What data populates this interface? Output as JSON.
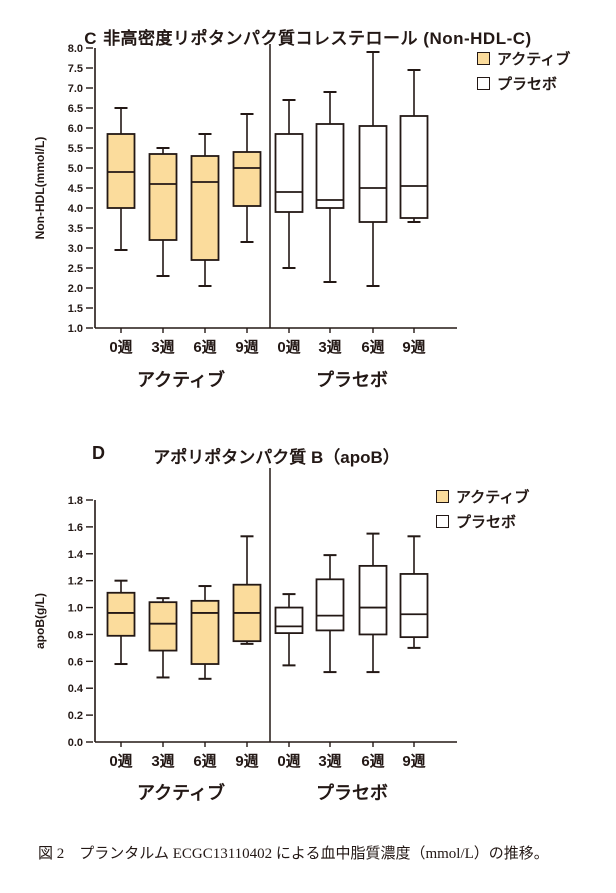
{
  "colors": {
    "active_fill": "#FBDC9C",
    "placebo_fill": "#FFFFFF",
    "stroke": "#231815",
    "text": "#231815"
  },
  "legend": {
    "active_label": "アクティブ",
    "placebo_label": "プラセボ"
  },
  "caption": "図 2　プランタルム ECGC13110402 による血中脂質濃度（mmol/L）の推移。",
  "chart_data": [
    {
      "type": "boxplot",
      "panel_letter": "C",
      "title": "非高密度リポタンパク質コレステロール (Non-HDL-C)",
      "ylabel": "Non-HDL(mmol/L)",
      "ylim": [
        1.0,
        8.0
      ],
      "ytick_step": 0.5,
      "categories": [
        "0週",
        "3週",
        "6週",
        "9週"
      ],
      "legend_position": "top-right",
      "grid": false,
      "groups": [
        {
          "name": "アクティブ",
          "fill": "#FBDC9C",
          "boxes": [
            {
              "min": 2.95,
              "q1": 4.0,
              "median": 4.9,
              "q3": 5.85,
              "max": 6.5
            },
            {
              "min": 2.3,
              "q1": 3.2,
              "median": 4.6,
              "q3": 5.35,
              "max": 5.5
            },
            {
              "min": 2.05,
              "q1": 2.7,
              "median": 4.65,
              "q3": 5.3,
              "max": 5.85
            },
            {
              "min": 3.15,
              "q1": 4.05,
              "median": 5.0,
              "q3": 5.4,
              "max": 6.35
            }
          ]
        },
        {
          "name": "プラセボ",
          "fill": "#FFFFFF",
          "boxes": [
            {
              "min": 2.5,
              "q1": 3.9,
              "median": 4.4,
              "q3": 5.85,
              "max": 6.7
            },
            {
              "min": 2.15,
              "q1": 4.0,
              "median": 4.2,
              "q3": 6.1,
              "max": 6.9
            },
            {
              "min": 2.05,
              "q1": 3.65,
              "median": 4.5,
              "q3": 6.05,
              "max": 7.9
            },
            {
              "min": 3.65,
              "q1": 3.75,
              "median": 4.55,
              "q3": 6.3,
              "max": 7.45
            }
          ]
        }
      ]
    },
    {
      "type": "boxplot",
      "panel_letter": "D",
      "title": "アポリポタンパク質 B（apoB）",
      "ylabel": "apoB(g/L)",
      "ylim": [
        0.0,
        1.8
      ],
      "ytick_step": 0.2,
      "categories": [
        "0週",
        "3週",
        "6週",
        "9週"
      ],
      "legend_position": "top-right",
      "grid": false,
      "groups": [
        {
          "name": "アクティブ",
          "fill": "#FBDC9C",
          "boxes": [
            {
              "min": 0.58,
              "q1": 0.79,
              "median": 0.96,
              "q3": 1.11,
              "max": 1.2
            },
            {
              "min": 0.48,
              "q1": 0.68,
              "median": 0.88,
              "q3": 1.04,
              "max": 1.07
            },
            {
              "min": 0.47,
              "q1": 0.58,
              "median": 0.96,
              "q3": 1.05,
              "max": 1.16
            },
            {
              "min": 0.73,
              "q1": 0.75,
              "median": 0.96,
              "q3": 1.17,
              "max": 1.53
            }
          ]
        },
        {
          "name": "プラセボ",
          "fill": "#FFFFFF",
          "boxes": [
            {
              "min": 0.57,
              "q1": 0.81,
              "median": 0.86,
              "q3": 1.0,
              "max": 1.1
            },
            {
              "min": 0.52,
              "q1": 0.83,
              "median": 0.94,
              "q3": 1.21,
              "max": 1.39
            },
            {
              "min": 0.52,
              "q1": 0.8,
              "median": 1.0,
              "q3": 1.31,
              "max": 1.55
            },
            {
              "min": 0.7,
              "q1": 0.78,
              "median": 0.95,
              "q3": 1.25,
              "max": 1.53
            }
          ]
        }
      ]
    }
  ]
}
